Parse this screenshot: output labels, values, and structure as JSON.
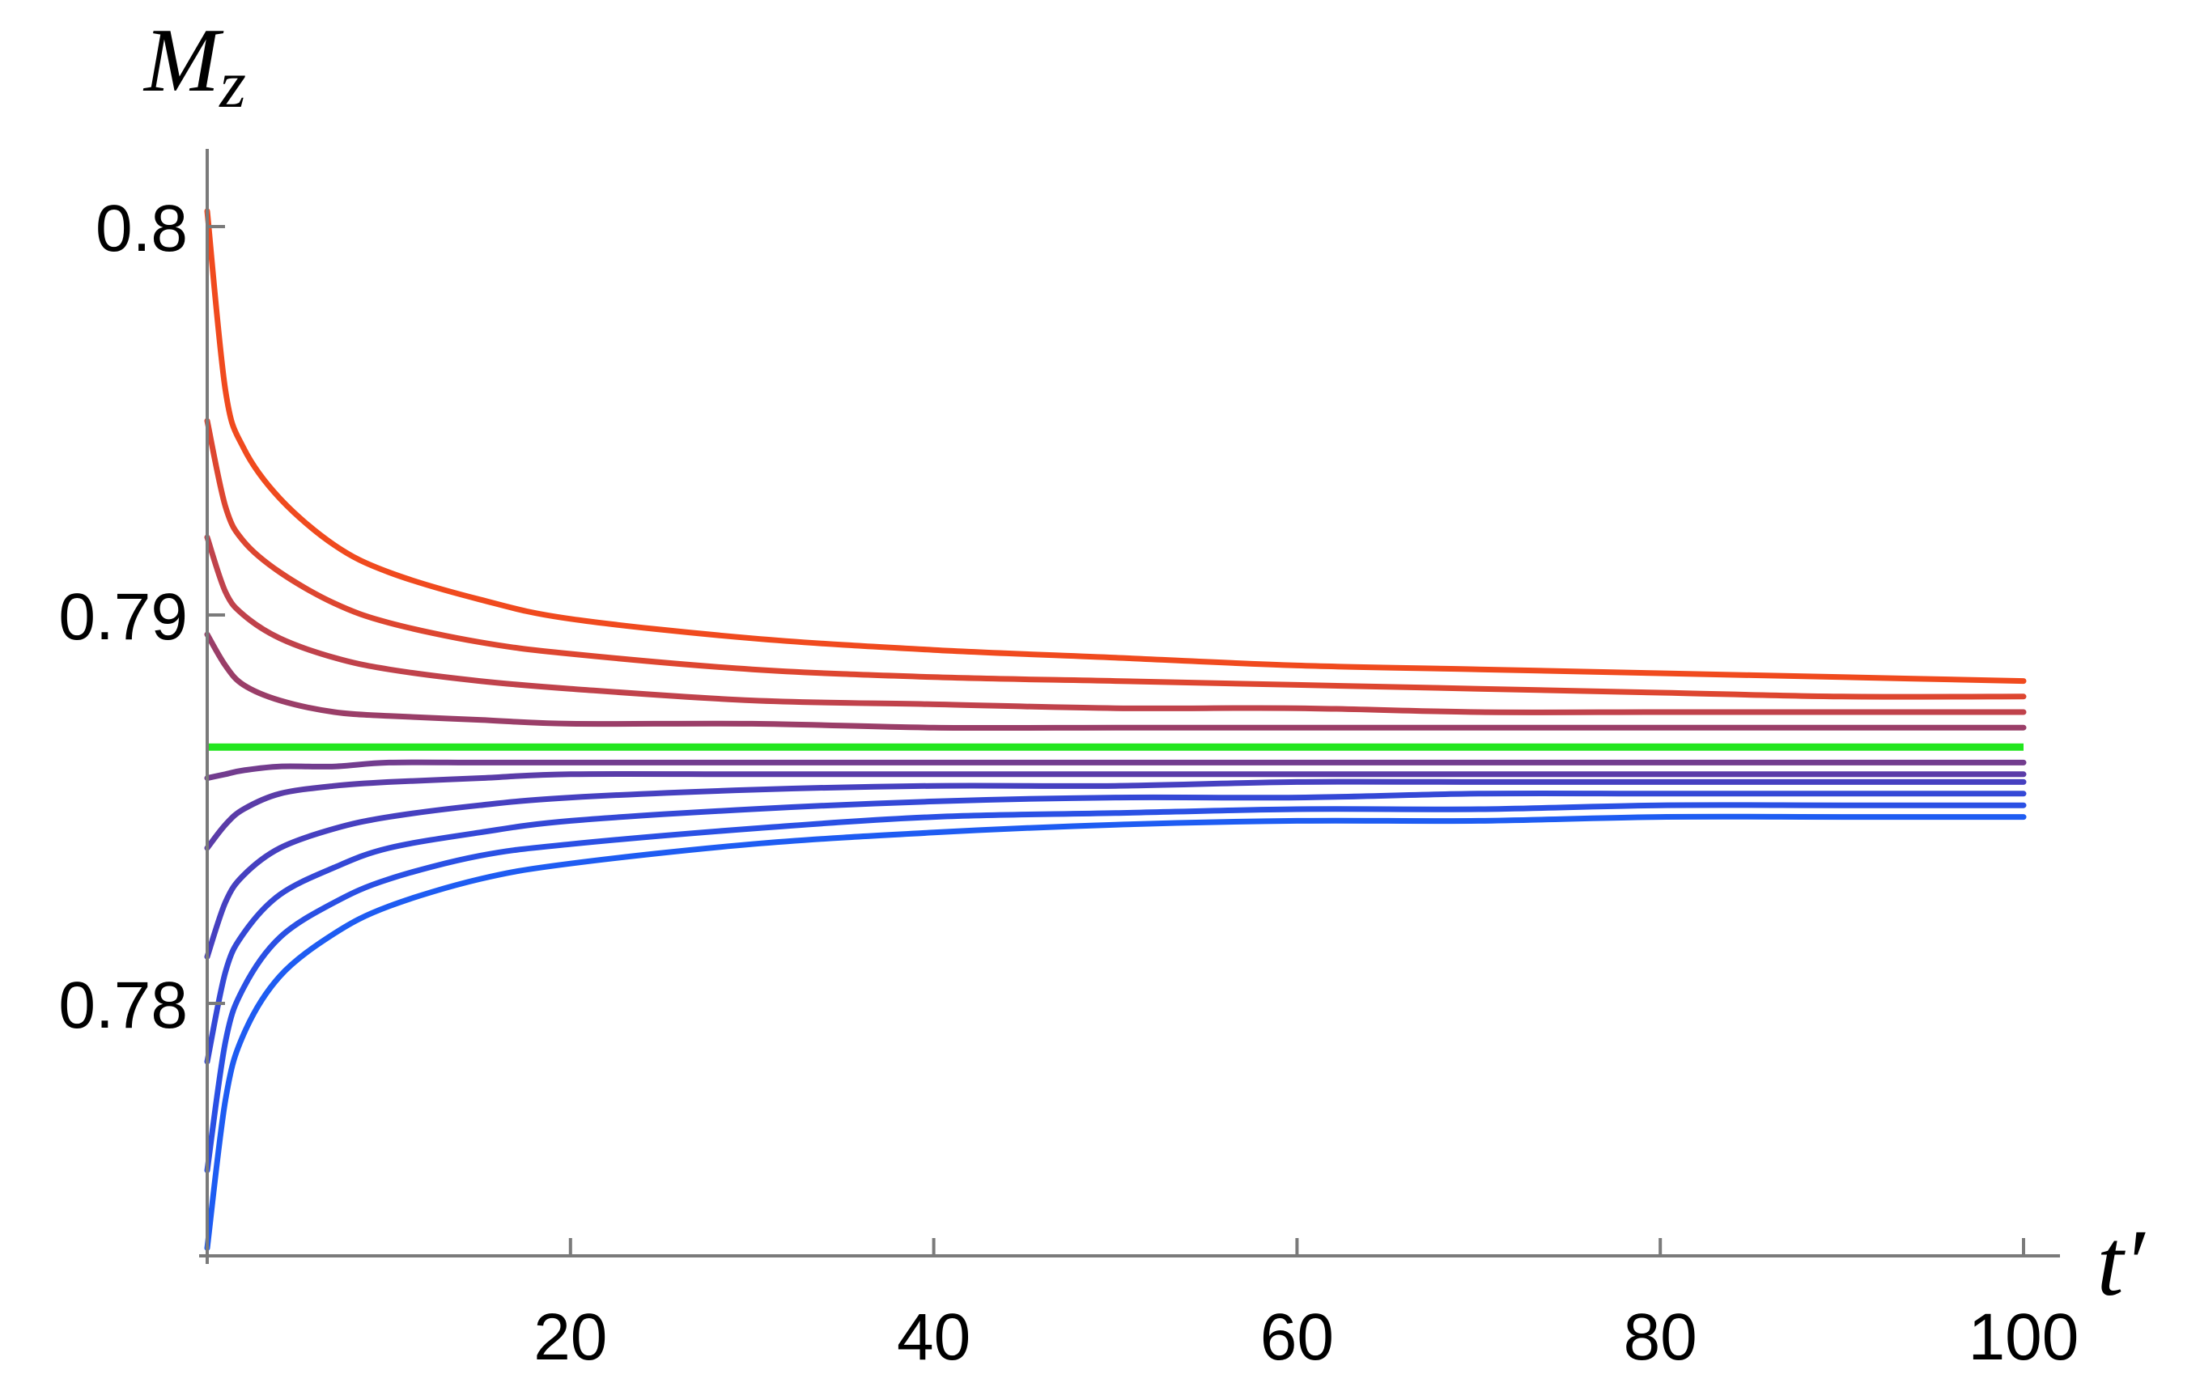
{
  "chart_data": {
    "type": "line",
    "title": "",
    "xlabel": "t′",
    "ylabel_main": "M",
    "ylabel_sub": "z",
    "xlim": [
      0,
      100
    ],
    "ylim": [
      0.7735,
      0.802
    ],
    "x_ticks": [
      {
        "value": 20,
        "label": "20"
      },
      {
        "value": 40,
        "label": "40"
      },
      {
        "value": 60,
        "label": "60"
      },
      {
        "value": 80,
        "label": "80"
      },
      {
        "value": 100,
        "label": "100"
      }
    ],
    "y_ticks": [
      {
        "value": 0.78,
        "label": "0.78"
      },
      {
        "value": 0.79,
        "label": "0.79"
      },
      {
        "value": 0.8,
        "label": "0.8"
      }
    ],
    "grid": false,
    "legend": "none",
    "equilibrium": {
      "value": 0.7866,
      "color": "#22e61e"
    },
    "series": [
      {
        "x": [
          0,
          1,
          2,
          4,
          7,
          10,
          15,
          20,
          30,
          40,
          50,
          60,
          70,
          80,
          90,
          100
        ],
        "y": [
          0.8004,
          0.7958,
          0.7943,
          0.793,
          0.7918,
          0.7911,
          0.7904,
          0.7899,
          0.7894,
          0.7891,
          0.7889,
          0.7887,
          0.7886,
          0.7885,
          0.7884,
          0.7883
        ],
        "color": "#f04a1e"
      },
      {
        "x": [
          0,
          1,
          2,
          4,
          7,
          10,
          15,
          20,
          30,
          40,
          50,
          60,
          70,
          80,
          90,
          100
        ],
        "y": [
          0.795,
          0.7928,
          0.7919,
          0.7911,
          0.7903,
          0.7898,
          0.7893,
          0.789,
          0.7886,
          0.7884,
          0.7883,
          0.7882,
          0.7881,
          0.788,
          0.7879,
          0.7879
        ],
        "color": "#dd4630"
      },
      {
        "x": [
          0,
          1,
          2,
          4,
          7,
          10,
          15,
          20,
          30,
          40,
          50,
          60,
          70,
          80,
          90,
          100
        ],
        "y": [
          0.792,
          0.7906,
          0.79,
          0.7894,
          0.7889,
          0.7886,
          0.7883,
          0.7881,
          0.7878,
          0.7877,
          0.7876,
          0.7876,
          0.7875,
          0.7875,
          0.7875,
          0.7875
        ],
        "color": "#c0424b"
      },
      {
        "x": [
          0,
          1,
          2,
          4,
          7,
          10,
          15,
          20,
          30,
          40,
          50,
          60,
          70,
          80,
          90,
          100
        ],
        "y": [
          0.7895,
          0.7887,
          0.7882,
          0.7878,
          0.7875,
          0.7874,
          0.7873,
          0.7872,
          0.7872,
          0.7871,
          0.7871,
          0.7871,
          0.7871,
          0.7871,
          0.7871,
          0.7871
        ],
        "color": "#9a3e68"
      },
      {
        "x": [
          0,
          1,
          2,
          4,
          7,
          10,
          15,
          20,
          30,
          40,
          50,
          60,
          70,
          80,
          90,
          100
        ],
        "y": [
          0.7858,
          0.7859,
          0.786,
          0.7861,
          0.7861,
          0.7862,
          0.7862,
          0.7862,
          0.7862,
          0.7862,
          0.7862,
          0.7862,
          0.7862,
          0.7862,
          0.7862,
          0.7862
        ],
        "color": "#723c8e"
      },
      {
        "x": [
          0,
          1,
          2,
          4,
          7,
          10,
          15,
          20,
          30,
          40,
          50,
          60,
          70,
          80,
          90,
          100
        ],
        "y": [
          0.784,
          0.7846,
          0.785,
          0.7854,
          0.7856,
          0.7857,
          0.7858,
          0.7859,
          0.7859,
          0.7859,
          0.7859,
          0.7859,
          0.7859,
          0.7859,
          0.7859,
          0.7859
        ],
        "color": "#5a3ca8"
      },
      {
        "x": [
          0,
          1,
          2,
          4,
          7,
          10,
          15,
          20,
          30,
          40,
          50,
          60,
          70,
          80,
          90,
          100
        ],
        "y": [
          0.7812,
          0.7826,
          0.7833,
          0.784,
          0.7845,
          0.7848,
          0.7851,
          0.7853,
          0.7855,
          0.7856,
          0.7856,
          0.7857,
          0.7857,
          0.7857,
          0.7857,
          0.7857
        ],
        "color": "#4640c0"
      },
      {
        "x": [
          0,
          1,
          2,
          4,
          7,
          10,
          15,
          20,
          30,
          40,
          50,
          60,
          70,
          80,
          90,
          100
        ],
        "y": [
          0.7785,
          0.7808,
          0.7818,
          0.7828,
          0.7835,
          0.784,
          0.7844,
          0.7847,
          0.785,
          0.7852,
          0.7853,
          0.7853,
          0.7854,
          0.7854,
          0.7854,
          0.7854
        ],
        "color": "#3448d6"
      },
      {
        "x": [
          0,
          1,
          2,
          4,
          7,
          10,
          15,
          20,
          30,
          40,
          50,
          60,
          70,
          80,
          90,
          100
        ],
        "y": [
          0.7757,
          0.779,
          0.7804,
          0.7817,
          0.7826,
          0.7832,
          0.7838,
          0.7841,
          0.7845,
          0.7848,
          0.7849,
          0.785,
          0.785,
          0.7851,
          0.7851,
          0.7851
        ],
        "color": "#2a50e4"
      },
      {
        "x": [
          0,
          1,
          2,
          4,
          7,
          10,
          15,
          20,
          30,
          40,
          50,
          60,
          70,
          80,
          90,
          100
        ],
        "y": [
          0.7737,
          0.7775,
          0.7792,
          0.7807,
          0.7818,
          0.7825,
          0.7832,
          0.7836,
          0.7841,
          0.7844,
          0.7846,
          0.7847,
          0.7847,
          0.7848,
          0.7848,
          0.7848
        ],
        "color": "#1e5cf2"
      }
    ]
  }
}
